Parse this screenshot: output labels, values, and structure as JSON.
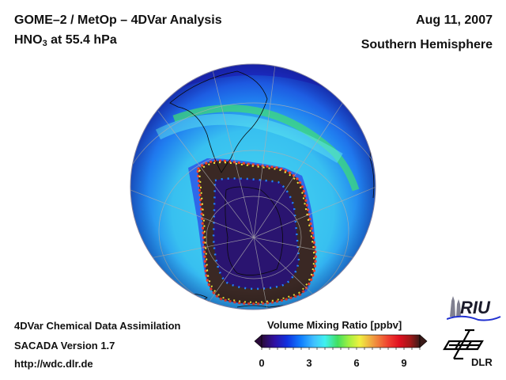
{
  "header": {
    "title_line1": "GOME–2 / MetOp – 4DVar Analysis",
    "species_main": "HNO",
    "species_sub": "3",
    "species_rest": " at 55.4 hPa",
    "date": "Aug 11, 2007",
    "region": "Southern Hemisphere"
  },
  "footer": {
    "line1": "4DVar Chemical Data Assimilation",
    "line2": "SACADA Version 1.7",
    "line3": "http://wdc.dlr.de"
  },
  "colorbar": {
    "title": "Volume Mixing Ratio [ppbv]",
    "min": 0,
    "max": 10,
    "ticks": [
      "0",
      "3",
      "6",
      "9"
    ],
    "tick_values": [
      0,
      3,
      6,
      9
    ],
    "extend": "both",
    "colors": [
      "#2a0a3a",
      "#3010a0",
      "#1030e0",
      "#1080ff",
      "#40c0ff",
      "#40f0f0",
      "#40e060",
      "#a0f040",
      "#f0f040",
      "#f0a040",
      "#f04030",
      "#e01020",
      "#a01818",
      "#3a1a18"
    ]
  },
  "map": {
    "projection": "orthographic",
    "hemisphere": "south",
    "field": "HNO3 volume mixing ratio",
    "features": [
      "South America",
      "Africa (east edge)",
      "Antarctica",
      "New Zealand"
    ],
    "regions": [
      {
        "name": "polar vortex core",
        "value_ppbv": 0.8,
        "color": "#2a1470"
      },
      {
        "name": "vortex edge collar",
        "value_ppbv": 10.5,
        "color": "#3a2824"
      },
      {
        "name": "collar rim",
        "value_ppbv": 7.5,
        "color": "#f04030"
      },
      {
        "name": "mid-latitude ring",
        "value_ppbv": 3.3,
        "color": "#40e0f0"
      },
      {
        "name": "subtropics",
        "value_ppbv": 1.2,
        "color": "#1838d8"
      }
    ]
  },
  "logos": {
    "riu": "RIU",
    "dlr": "DLR"
  }
}
